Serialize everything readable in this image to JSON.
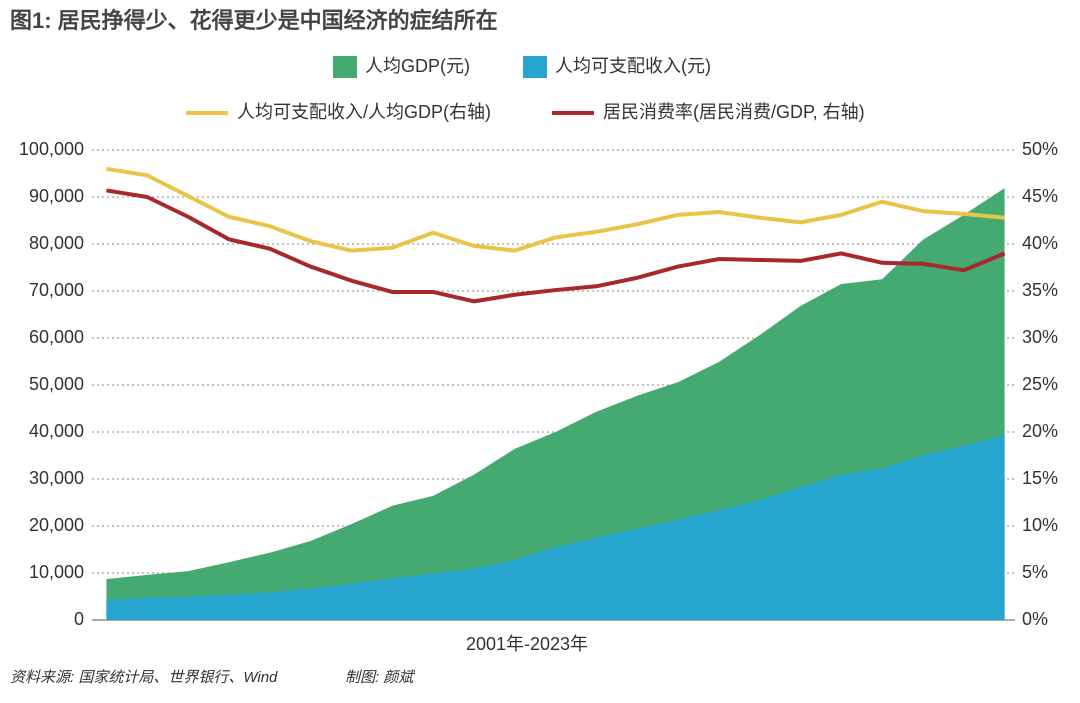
{
  "chart_data": {
    "type": "area",
    "title": "图1: 居民挣得少、花得更少是中国经济的症结所在",
    "x_label": "2001年-2023年",
    "source": "资料来源: 国家统计局、世界银行、Wind",
    "credit": "制图: 颜斌",
    "categories": [
      null,
      null,
      null,
      null,
      null,
      null,
      null,
      null,
      null,
      null,
      null,
      null,
      null,
      null,
      null,
      null,
      null,
      null,
      null,
      null,
      null,
      null,
      null
    ],
    "series": [
      {
        "name": "人均GDP(元)",
        "type": "area",
        "color": "#45aa72",
        "values": [
          8700,
          9600,
          10400,
          12300,
          14300,
          16800,
          20400,
          24300,
          26400,
          30900,
          36400,
          40000,
          44300,
          47700,
          50600,
          54900,
          60600,
          66800,
          71500,
          72500,
          80900,
          86200,
          91900
        ]
      },
      {
        "name": "人均可支配收入(元)",
        "type": "area",
        "color": "#26a6cf",
        "values": [
          4300,
          4700,
          5000,
          5400,
          5900,
          6700,
          7700,
          8900,
          9900,
          10900,
          12800,
          15500,
          17500,
          19500,
          21300,
          23400,
          25500,
          28300,
          30900,
          32300,
          35000,
          37100,
          39300
        ]
      },
      {
        "name": "人均可支配收入/人均GDP(右轴)",
        "type": "line",
        "axis": "y2",
        "color": "#e8c547",
        "values": [
          48.0,
          47.3,
          45.1,
          42.9,
          41.9,
          40.3,
          39.3,
          39.6,
          41.2,
          39.8,
          39.3,
          40.7,
          41.3,
          42.1,
          43.1,
          43.4,
          42.8,
          42.3,
          43.1,
          44.5,
          43.5,
          43.2,
          42.8
        ]
      },
      {
        "name": "居民消费率(居民消费/GDP, 右轴)",
        "type": "line",
        "axis": "y2",
        "color": "#a8282c",
        "values": [
          45.7,
          45.0,
          42.9,
          40.5,
          39.5,
          37.6,
          36.1,
          34.9,
          34.9,
          33.9,
          34.6,
          35.1,
          35.5,
          36.4,
          37.6,
          38.4,
          38.3,
          38.2,
          39.0,
          38.0,
          37.9,
          37.2,
          39.0
        ]
      }
    ],
    "ylim": [
      0,
      100000
    ],
    "yticks": [
      0,
      {
        "value": 10000,
        "label": "10,000"
      },
      {
        "value": 20000,
        "label": "20,000"
      },
      {
        "value": 30000,
        "label": "30,000"
      },
      {
        "value": 40000,
        "label": "40,000"
      },
      {
        "value": 50000,
        "label": "50,000"
      },
      {
        "value": 60000,
        "label": "60,000"
      },
      {
        "value": 70000,
        "label": "70,000"
      },
      {
        "value": 80000,
        "label": "80,000"
      },
      {
        "value": 90000,
        "label": "90,000"
      },
      {
        "value": 100000,
        "label": "100,000"
      }
    ],
    "y2lim": [
      0,
      50
    ],
    "y2ticks": [
      {
        "value": 0,
        "label": "0%"
      },
      {
        "value": 5,
        "label": "5%"
      },
      {
        "value": 10,
        "label": "10%"
      },
      {
        "value": 15,
        "label": "15%"
      },
      {
        "value": 20,
        "label": "20%"
      },
      {
        "value": 25,
        "label": "25%"
      },
      {
        "value": 30,
        "label": "30%"
      },
      {
        "value": 35,
        "label": "35%"
      },
      {
        "value": 40,
        "label": "40%"
      },
      {
        "value": 45,
        "label": "45%"
      },
      {
        "value": 50,
        "label": "50%"
      }
    ],
    "grid": true,
    "legend": "top"
  }
}
